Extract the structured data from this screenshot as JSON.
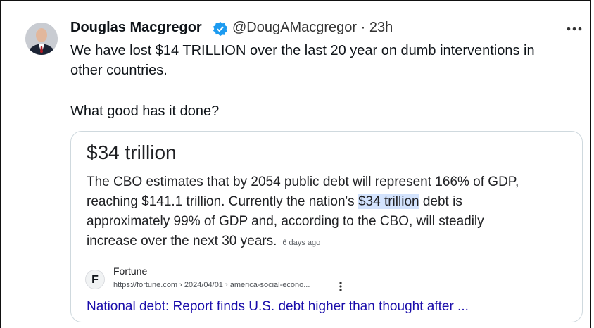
{
  "tweet": {
    "author_name": "Douglas Macgregor",
    "handle": "@DougAMacgregor",
    "separator": "·",
    "time": "23h",
    "text_lines": [
      "We have lost $14 TRILLION over the last 20 year on dumb interventions in",
      "other countries.",
      "What good has it done?"
    ]
  },
  "card": {
    "heading": "$34 trillion",
    "snippet_lines": [
      "The CBO estimates that by 2054 public debt will represent 166% of GDP,",
      "reaching $141.1 trillion. Currently the nation's ",
      "approximately 99% of GDP and, according to the CBO, will steadily",
      "increase over the next 30 years."
    ],
    "highlight": "$34 trillion",
    "after_highlight": " debt is",
    "age": "6 days ago",
    "favicon_letter": "F",
    "source": "Fortune",
    "url": "https://fortune.com › 2024/04/01 › america-social-econo...",
    "link_title": "National debt: Report finds U.S. debt higher than thought after ..."
  }
}
